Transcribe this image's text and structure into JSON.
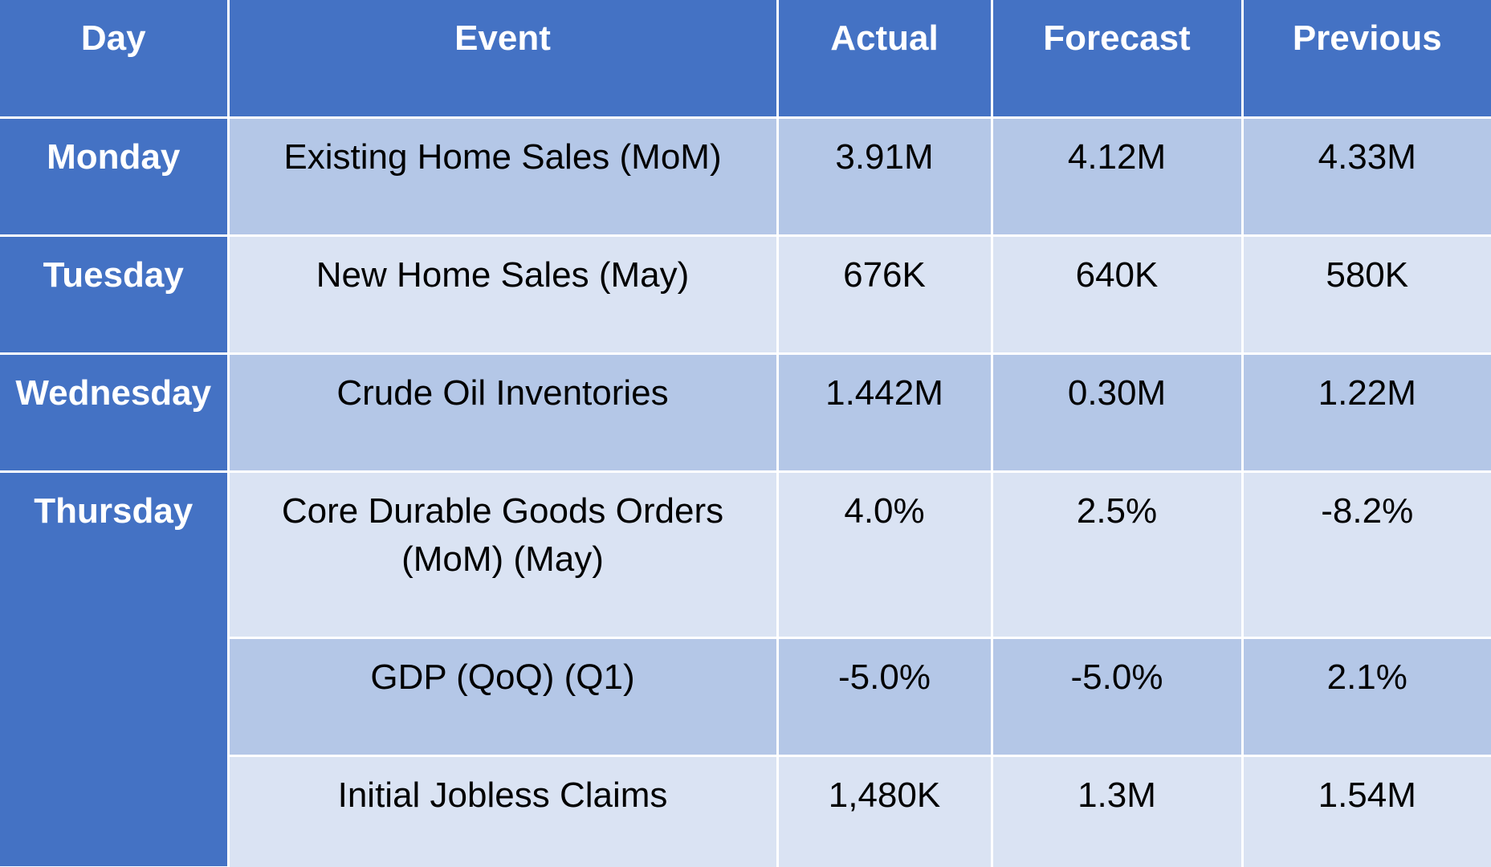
{
  "headers": {
    "day": "Day",
    "event": "Event",
    "actual": "Actual",
    "forecast": "Forecast",
    "previous": "Previous"
  },
  "days": {
    "monday": "Monday",
    "tuesday": "Tuesday",
    "wednesday": "Wednesday",
    "thursday": "Thursday"
  },
  "rows": [
    {
      "event": "Existing Home Sales (MoM)",
      "actual": "3.91M",
      "forecast": "4.12M",
      "previous": "4.33M",
      "actual_trend": "down"
    },
    {
      "event": "New Home Sales (May)",
      "actual": "676K",
      "forecast": "640K",
      "previous": "580K",
      "actual_trend": "up"
    },
    {
      "event": "Crude Oil Inventories",
      "actual": "1.442M",
      "forecast": "0.30M",
      "previous": "1.22M",
      "actual_trend": "down"
    },
    {
      "event_line1": "Core Durable Goods Orders",
      "event_line2": "(MoM) (May)",
      "actual": "4.0%",
      "forecast": "2.5%",
      "previous": "-8.2%",
      "actual_trend": "up"
    },
    {
      "event": "GDP (QoQ) (Q1)",
      "actual": "-5.0%",
      "forecast": "-5.0%",
      "previous": "2.1%",
      "actual_trend": "neutral"
    },
    {
      "event": "Initial Jobless Claims",
      "actual": "1,480K",
      "forecast": "1.3M",
      "previous": "1.54M",
      "actual_trend": "down"
    }
  ],
  "colors": {
    "header_bg": "#4472c4",
    "band_dark": "#b4c7e7",
    "band_light": "#dae3f3",
    "better_than_forecast": "#70ad47",
    "worse_than_forecast": "#ff0000"
  }
}
